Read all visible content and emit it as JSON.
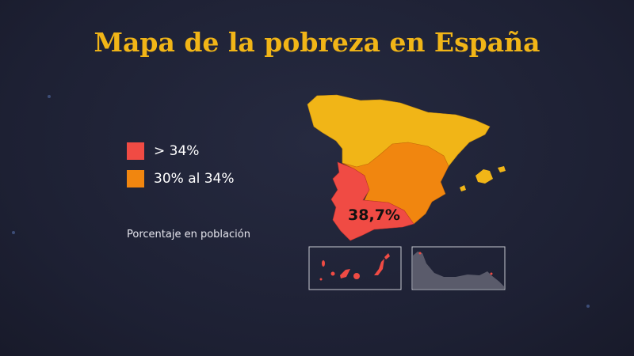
{
  "title": "Mapa de la pobreza en España",
  "legend": [
    {
      "label": "> 34%",
      "color": "#f04b44"
    },
    {
      "label": "30% al 34%",
      "color": "#f1860f"
    }
  ],
  "note": "Porcentaje en población",
  "map": {
    "highlight_value": "38,7%",
    "colors": {
      "high": "#f04b44",
      "mid": "#f1860f",
      "low": "#f1b517",
      "background": "#1f2236",
      "inset_border": "#c8cad2"
    },
    "regions": [
      {
        "group": "north",
        "category": "low"
      },
      {
        "group": "center-east",
        "category": "mid"
      },
      {
        "group": "southwest",
        "category": "high"
      },
      {
        "group": "balearic-islands",
        "category": "low"
      },
      {
        "group": "canary-islands",
        "category": "high"
      }
    ]
  }
}
